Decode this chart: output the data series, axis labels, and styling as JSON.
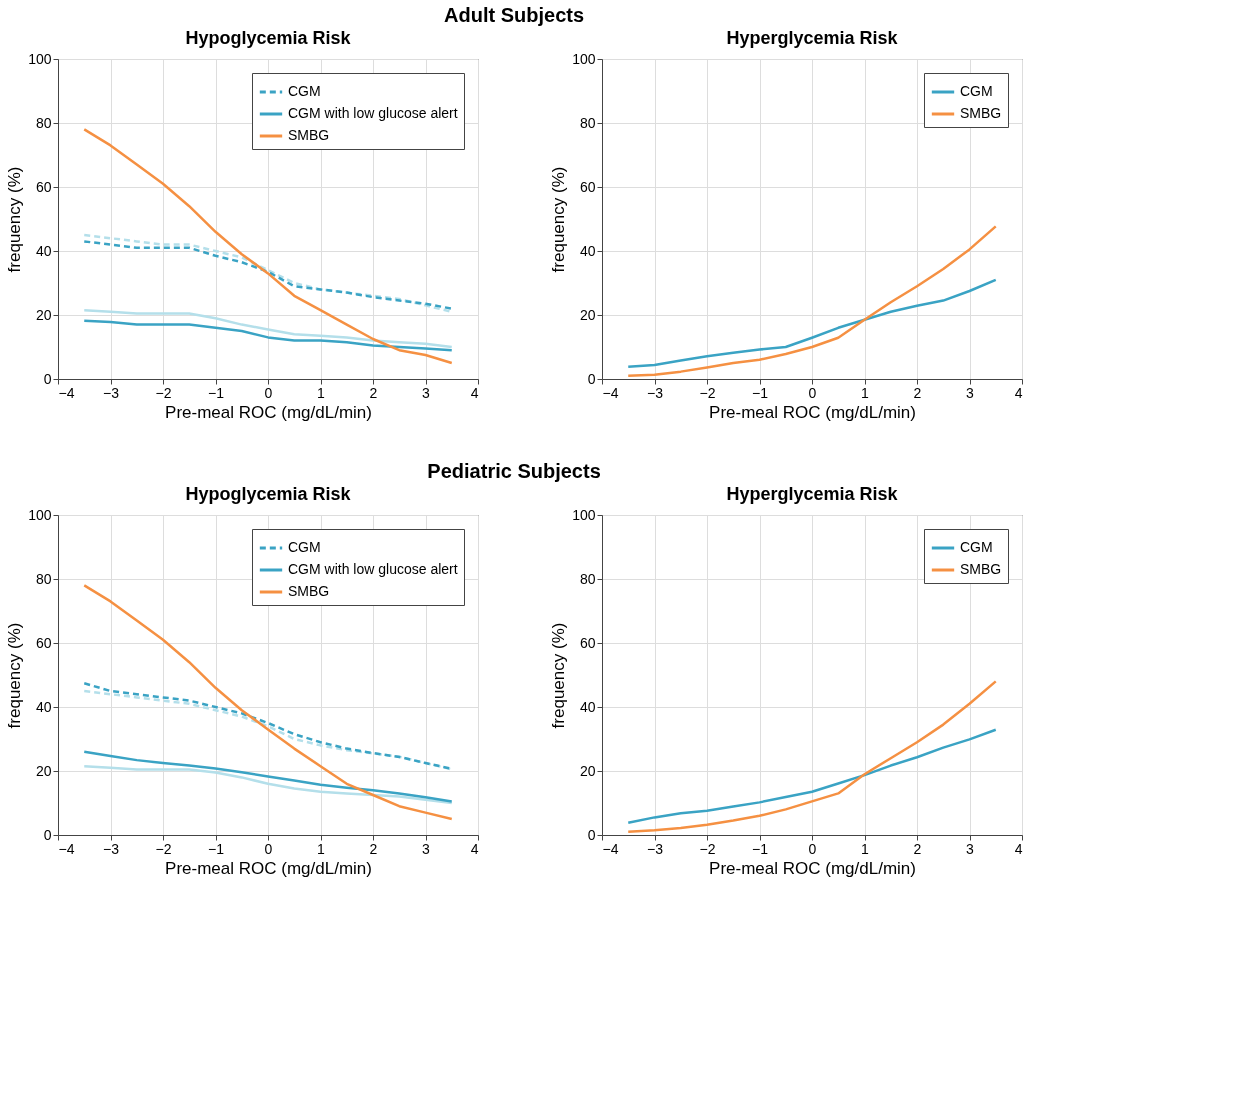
{
  "chart_data": [
    {
      "type": "line",
      "title": "Hypoglycemia Risk",
      "annotations": [
        "Adult Subjects"
      ],
      "xlabel": "Pre-meal ROC (mg/dL/min)",
      "ylabel": "frequency (%)",
      "x": [
        -3.5,
        -3,
        -2.5,
        -2,
        -1.5,
        -1,
        -0.5,
        0,
        0.5,
        1,
        1.5,
        2,
        2.5,
        3,
        3.5
      ],
      "xlim": [
        -4,
        4
      ],
      "xticks": [
        -4,
        -3,
        -2,
        -1,
        0,
        1,
        2,
        3,
        4
      ],
      "ylim": [
        0,
        100
      ],
      "yticks": [
        0,
        20,
        40,
        60,
        80,
        100
      ],
      "grid": true,
      "legend": "top right",
      "series": [
        {
          "name": "CGM",
          "color": "#3aa3c4",
          "line_style": "dashed",
          "values": [
            43,
            42,
            41,
            41,
            41,
            38.5,
            36.5,
            33.5,
            29,
            28,
            27,
            25.6,
            24.5,
            23.5,
            22
          ]
        },
        {
          "name": "CGM with low glucose alert",
          "color": "#3aa3c4",
          "line_style": "solid",
          "values": [
            18.2,
            17.8,
            17,
            17,
            17,
            16,
            15,
            13,
            12,
            12,
            11.5,
            10.5,
            10,
            9.5,
            9
          ]
        },
        {
          "name": "SMBG",
          "color": "#f59042",
          "line_style": "solid",
          "values": [
            78,
            73,
            67,
            61,
            54,
            46,
            39,
            33,
            26,
            21.5,
            17,
            12.5,
            9,
            7.5,
            5
          ]
        },
        {
          "color": "#b4dfea",
          "line_style": "dashed",
          "values": [
            45,
            44,
            43,
            42,
            42,
            40,
            38,
            34,
            30,
            28,
            27,
            26,
            25,
            23,
            21
          ]
        },
        {
          "color": "#b4dfea",
          "line_style": "solid",
          "values": [
            21.5,
            21,
            20.5,
            20.5,
            20.5,
            19,
            17,
            15.5,
            14,
            13.5,
            13,
            12,
            11.5,
            11,
            10
          ]
        }
      ]
    },
    {
      "type": "line",
      "title": "Hyperglycemia Risk",
      "xlabel": "Pre-meal ROC (mg/dL/min)",
      "ylabel": "frequency (%)",
      "x": [
        -3.5,
        -3,
        -2.5,
        -2,
        -1.5,
        -1,
        -0.5,
        0,
        0.5,
        1,
        1.5,
        2,
        2.5,
        3,
        3.5
      ],
      "xlim": [
        -4,
        4
      ],
      "xticks": [
        -4,
        -3,
        -2,
        -1,
        0,
        1,
        2,
        3,
        4
      ],
      "ylim": [
        0,
        100
      ],
      "yticks": [
        0,
        20,
        40,
        60,
        80,
        100
      ],
      "grid": true,
      "legend": "top right",
      "series": [
        {
          "name": "CGM",
          "color": "#3aa3c4",
          "line_style": "solid",
          "values": [
            3.8,
            4.4,
            5.8,
            7.1,
            8.2,
            9.2,
            10,
            12.9,
            16,
            18.5,
            21,
            22.9,
            24.5,
            27.5,
            31
          ]
        },
        {
          "name": "SMBG",
          "color": "#f59042",
          "line_style": "solid",
          "values": [
            1,
            1.3,
            2.3,
            3.6,
            5,
            6,
            7.8,
            10,
            12.9,
            18.5,
            24,
            29,
            34.4,
            40.5,
            47.7
          ]
        }
      ]
    },
    {
      "type": "line",
      "title": "Hypoglycemia Risk",
      "annotations": [
        "Pediatric Subjects"
      ],
      "xlabel": "Pre-meal ROC (mg/dL/min)",
      "ylabel": "frequency (%)",
      "x": [
        -3.5,
        -3,
        -2.5,
        -2,
        -1.5,
        -1,
        -0.5,
        0,
        0.5,
        1,
        1.5,
        2,
        2.5,
        3,
        3.5
      ],
      "xlim": [
        -4,
        4
      ],
      "xticks": [
        -4,
        -3,
        -2,
        -1,
        0,
        1,
        2,
        3,
        4
      ],
      "ylim": [
        0,
        100
      ],
      "yticks": [
        0,
        20,
        40,
        60,
        80,
        100
      ],
      "grid": true,
      "legend": "top right",
      "series": [
        {
          "name": "CGM",
          "color": "#3aa3c4",
          "line_style": "dashed",
          "values": [
            47.4,
            45,
            44,
            43,
            42,
            40,
            38,
            35,
            31.5,
            29,
            27,
            25.6,
            24.4,
            22.5,
            20.7
          ]
        },
        {
          "name": "CGM with low glucose alert",
          "color": "#3aa3c4",
          "line_style": "solid",
          "values": [
            26,
            24.7,
            23.4,
            22.5,
            21.7,
            20.8,
            19.6,
            18.3,
            17,
            15.7,
            14.8,
            14,
            13,
            11.8,
            10.5
          ]
        },
        {
          "name": "SMBG",
          "color": "#f59042",
          "line_style": "solid",
          "values": [
            78,
            73,
            67,
            61,
            54,
            46,
            39,
            33,
            27,
            21.5,
            16,
            12.5,
            9,
            7,
            5
          ]
        },
        {
          "color": "#b4dfea",
          "line_style": "dashed",
          "values": [
            45,
            44,
            43,
            42,
            41,
            39,
            37,
            34,
            30,
            28,
            26.5,
            25.5,
            24.5,
            22.5,
            20.5
          ]
        },
        {
          "color": "#b4dfea",
          "line_style": "solid",
          "values": [
            21.5,
            21,
            20.5,
            20.5,
            20.5,
            19.5,
            18,
            16,
            14.5,
            13.5,
            13,
            12.5,
            12,
            11,
            10
          ]
        }
      ]
    },
    {
      "type": "line",
      "title": "Hyperglycemia Risk",
      "xlabel": "Pre-meal ROC (mg/dL/min)",
      "ylabel": "frequency (%)",
      "x": [
        -3.5,
        -3,
        -2.5,
        -2,
        -1.5,
        -1,
        -0.5,
        0,
        0.5,
        1,
        1.5,
        2,
        2.5,
        3,
        3.5
      ],
      "xlim": [
        -4,
        4
      ],
      "xticks": [
        -4,
        -3,
        -2,
        -1,
        0,
        1,
        2,
        3,
        4
      ],
      "ylim": [
        0,
        100
      ],
      "yticks": [
        0,
        20,
        40,
        60,
        80,
        100
      ],
      "grid": true,
      "legend": "top right",
      "series": [
        {
          "name": "CGM",
          "color": "#3aa3c4",
          "line_style": "solid",
          "values": [
            3.8,
            5.5,
            6.8,
            7.6,
            8.9,
            10.2,
            11.9,
            13.5,
            16.1,
            18.7,
            21.7,
            24.3,
            27.3,
            29.9,
            32.9
          ]
        },
        {
          "name": "SMBG",
          "color": "#f59042",
          "line_style": "solid",
          "values": [
            1,
            1.5,
            2.2,
            3.2,
            4.5,
            6,
            8,
            10.5,
            13,
            19,
            24,
            29,
            34.5,
            41,
            48
          ]
        }
      ]
    }
  ]
}
